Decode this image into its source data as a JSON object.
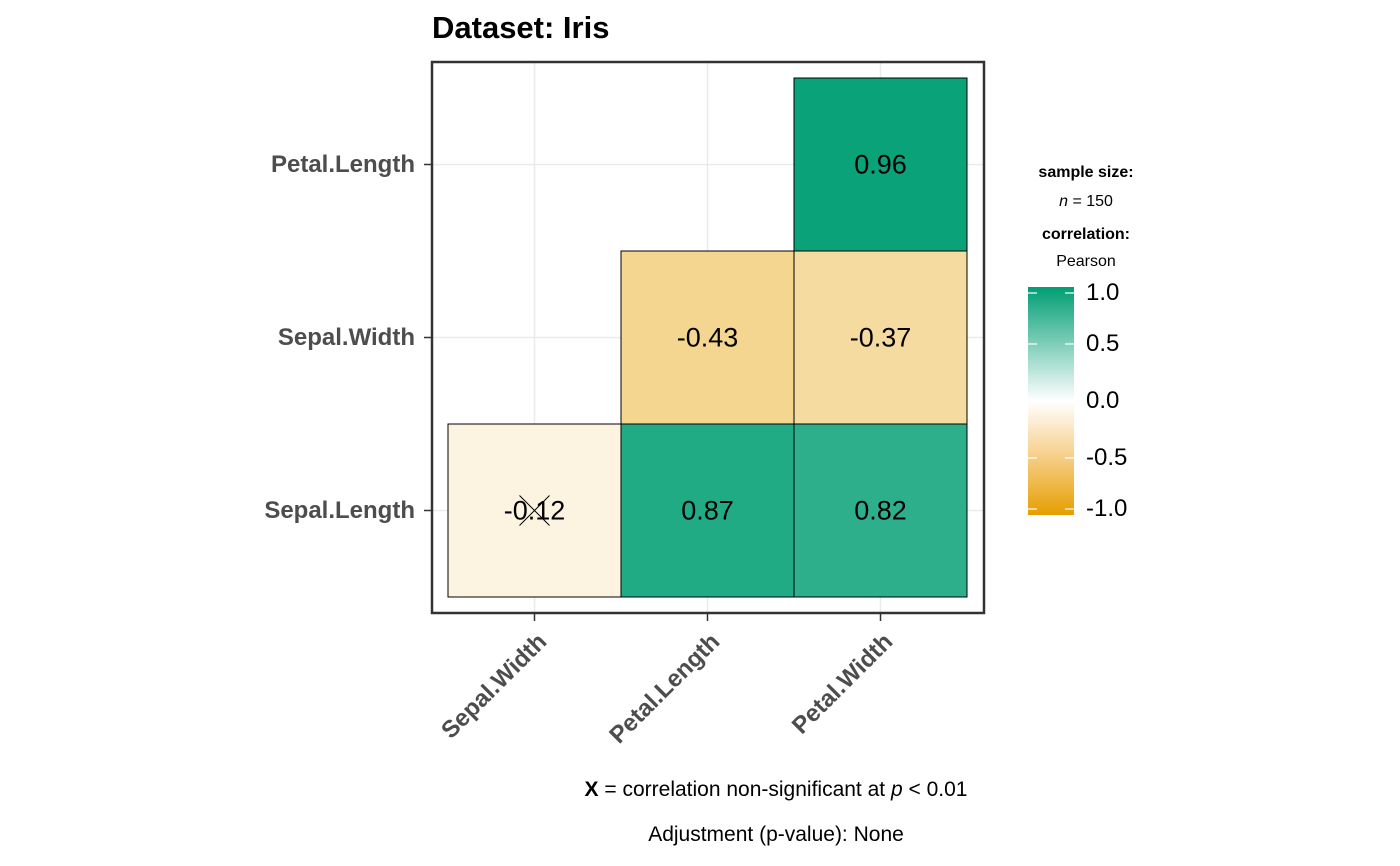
{
  "chart_data": {
    "type": "heatmap",
    "title": "Dataset: Iris",
    "x_labels": [
      "Sepal.Width",
      "Petal.Length",
      "Petal.Width"
    ],
    "y_labels": [
      "Sepal.Length",
      "Sepal.Width",
      "Petal.Length"
    ],
    "cells": [
      {
        "x": "Sepal.Width",
        "y": "Sepal.Length",
        "value": -0.12,
        "label": "-0.12",
        "non_significant": true
      },
      {
        "x": "Petal.Length",
        "y": "Sepal.Length",
        "value": 0.87,
        "label": "0.87",
        "non_significant": false
      },
      {
        "x": "Petal.Width",
        "y": "Sepal.Length",
        "value": 0.82,
        "label": "0.82",
        "non_significant": false
      },
      {
        "x": "Petal.Length",
        "y": "Sepal.Width",
        "value": -0.43,
        "label": "-0.43",
        "non_significant": false
      },
      {
        "x": "Petal.Width",
        "y": "Sepal.Width",
        "value": -0.37,
        "label": "-0.37",
        "non_significant": false
      },
      {
        "x": "Petal.Width",
        "y": "Petal.Length",
        "value": 0.96,
        "label": "0.96",
        "non_significant": false
      }
    ],
    "color_scale": {
      "low": "#E69F00",
      "mid": "#FFFFFF",
      "high": "#009E73",
      "limits": [
        -1,
        1
      ]
    },
    "legend": {
      "sample_size_title": "sample size:",
      "sample_size_n": "n",
      "sample_size_value": "= 150",
      "correlation_title": "correlation:",
      "correlation_method": "Pearson",
      "ticks": [
        "1.0",
        "0.5",
        "0.0",
        "-0.5",
        "-1.0"
      ],
      "tick_values": [
        1.0,
        0.5,
        0.0,
        -0.5,
        -1.0
      ],
      "position": "right"
    },
    "caption": {
      "marker": "X",
      "text_before_p": "= correlation non-significant at",
      "p": "p",
      "text_after_p": "< 0.01",
      "adjustment": "Adjustment (p-value): None"
    },
    "grid": true
  }
}
